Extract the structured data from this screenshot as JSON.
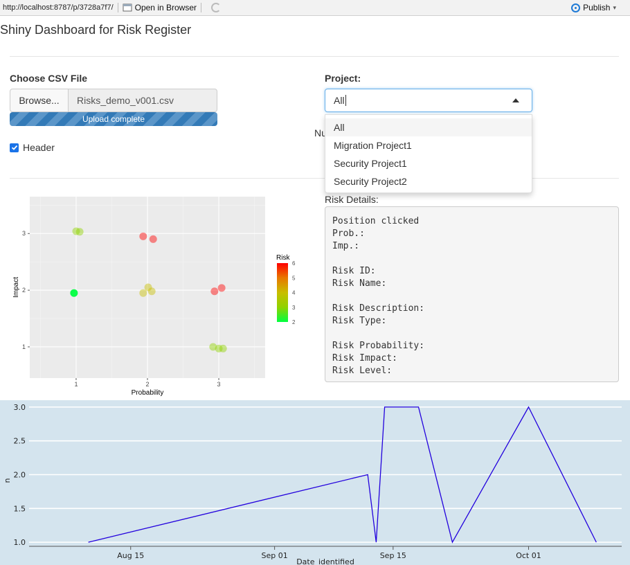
{
  "browser": {
    "url": "http://localhost:8787/p/3728a7f7/",
    "open_in_browser": "Open in Browser",
    "publish": "Publish"
  },
  "page": {
    "title": "Shiny Dashboard for Risk Register"
  },
  "file_upload": {
    "label": "Choose CSV File",
    "browse_label": "Browse...",
    "file_name": "Risks_demo_v001.csv",
    "progress_text": "Upload complete",
    "progress": 1.0
  },
  "header_checkbox": {
    "label": "Header",
    "checked": true
  },
  "project": {
    "label": "Project:",
    "selected": "All",
    "options": [
      "All",
      "Migration Project1",
      "Security Project1",
      "Security Project2"
    ]
  },
  "partial_text": "Nu",
  "details": {
    "label": "Risk Details:",
    "lines": [
      "Position clicked",
      "Prob.:",
      "Imp.:",
      "",
      "Risk ID:",
      "Risk Name:",
      "",
      "Risk Description:",
      "Risk Type:",
      "",
      "Risk Probability:",
      "Risk Impact:",
      "Risk Level:"
    ]
  },
  "colors": {
    "accent": "#337ab7",
    "focus": "#66afe9",
    "line": "#2200dd",
    "chart_bg": "#d4e4ee"
  },
  "chart_data": [
    {
      "type": "scatter",
      "xlabel": "Probability",
      "ylabel": "Impact",
      "xticks": [
        1,
        2,
        3
      ],
      "yticks": [
        1,
        2,
        3
      ],
      "xlim": [
        0.35,
        3.65
      ],
      "ylim": [
        0.45,
        3.65
      ],
      "legend": {
        "title": "Risk",
        "ticks": [
          2,
          3,
          4,
          5,
          6
        ],
        "position": "right"
      },
      "points": [
        {
          "x": 1.0,
          "y": 3.04,
          "risk": 3
        },
        {
          "x": 1.05,
          "y": 3.03,
          "risk": 3
        },
        {
          "x": 0.97,
          "y": 1.95,
          "risk": 2
        },
        {
          "x": 1.94,
          "y": 2.95,
          "risk": 6
        },
        {
          "x": 2.08,
          "y": 2.9,
          "risk": 6
        },
        {
          "x": 1.94,
          "y": 1.95,
          "risk": 4
        },
        {
          "x": 2.01,
          "y": 2.05,
          "risk": 4
        },
        {
          "x": 2.06,
          "y": 1.98,
          "risk": 4
        },
        {
          "x": 2.94,
          "y": 1.98,
          "risk": 6
        },
        {
          "x": 3.04,
          "y": 2.04,
          "risk": 6
        },
        {
          "x": 2.92,
          "y": 1.0,
          "risk": 3
        },
        {
          "x": 3.0,
          "y": 0.97,
          "risk": 3
        },
        {
          "x": 3.06,
          "y": 0.97,
          "risk": 3
        }
      ]
    },
    {
      "type": "line",
      "xlabel": "Date_identified",
      "ylabel": "n",
      "xticks": [
        "Aug 15",
        "Sep 01",
        "Sep 15",
        "Oct 01"
      ],
      "yticks": [
        1.0,
        1.5,
        2.0,
        2.5,
        3.0
      ],
      "ylim": [
        0.95,
        3.05
      ],
      "x": [
        "2023-08-10",
        "2023-09-12",
        "2023-09-13",
        "2023-09-14",
        "2023-09-18",
        "2023-09-22",
        "2023-10-01",
        "2023-10-09"
      ],
      "y": [
        1,
        2,
        1,
        3,
        3,
        1,
        3,
        1
      ]
    }
  ]
}
